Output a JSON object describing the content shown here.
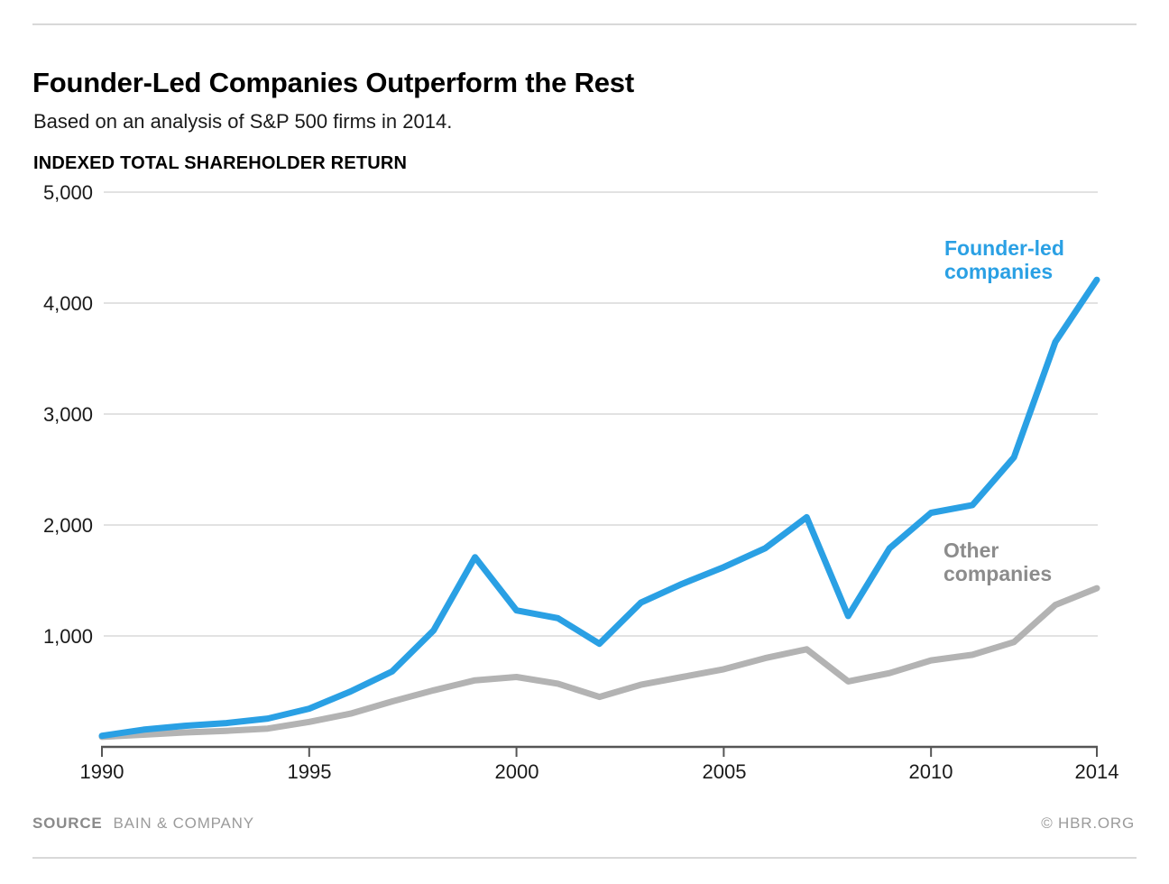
{
  "header": {
    "title": "Founder-Led Companies Outperform the Rest",
    "subtitle": "Based on an analysis of S&P 500 firms in 2014."
  },
  "chart_data": {
    "type": "line",
    "title": "INDEXED TOTAL SHAREHOLDER RETURN",
    "xlabel": "",
    "ylabel": "INDEXED TOTAL SHAREHOLDER RETURN",
    "xlim": [
      1990,
      2014
    ],
    "ylim": [
      0,
      5000
    ],
    "grid": "horizontal gridlines only",
    "legend_position": "inline labels near lines",
    "x": [
      1990,
      1991,
      1992,
      1993,
      1994,
      1995,
      1996,
      1997,
      1998,
      1999,
      2000,
      2001,
      2002,
      2003,
      2004,
      2005,
      2006,
      2007,
      2008,
      2009,
      2010,
      2011,
      2012,
      2013,
      2014
    ],
    "series": [
      {
        "name": "Founder-led companies",
        "color": "#2AA0E4",
        "label_color": "#2AA0E4",
        "values": [
          100,
          155,
          190,
          215,
          255,
          345,
          500,
          680,
          1050,
          1710,
          1230,
          1160,
          930,
          1300,
          1470,
          1620,
          1790,
          2070,
          1180,
          1790,
          2110,
          2180,
          2610,
          3650,
          4210
        ]
      },
      {
        "name": "Other companies",
        "color": "#B3B3B3",
        "label_color": "#8C8C8C",
        "values": [
          90,
          110,
          130,
          145,
          165,
          225,
          300,
          410,
          510,
          600,
          630,
          570,
          450,
          560,
          630,
          700,
          800,
          880,
          590,
          665,
          780,
          830,
          945,
          1280,
          1430
        ]
      }
    ],
    "y_tick_values": [
      5000,
      4000,
      3000,
      2000,
      1000
    ],
    "y_tick_labels": [
      "5,000",
      "4,000",
      "3,000",
      "2,000",
      "1,000"
    ],
    "x_tick_values": [
      1990,
      1995,
      2000,
      2005,
      2010,
      2014
    ],
    "x_tick_labels": [
      "1990",
      "1995",
      "2000",
      "2005",
      "2010",
      "2014"
    ],
    "gridline_color": "#d9d9d9",
    "axis_color": "#555555"
  },
  "legend": {
    "founder": "Founder-led\ncompanies",
    "other": "Other\ncompanies"
  },
  "footer": {
    "source_label": "SOURCE",
    "source_value": "BAIN & COMPANY",
    "credit": "© HBR.ORG"
  }
}
